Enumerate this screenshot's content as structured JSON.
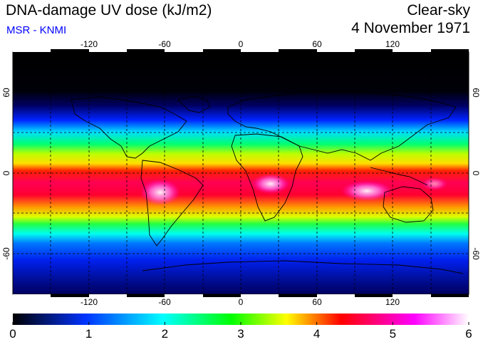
{
  "header": {
    "title": "DNA-damage UV dose (kJ/m2)",
    "source": "MSR - KNMI",
    "condition": "Clear-sky",
    "date": "4 November 1971"
  },
  "map": {
    "lon_ticks": [
      "-120",
      "-60",
      "0",
      "60",
      "120"
    ],
    "lat_ticks": [
      "60",
      "0",
      "-60"
    ]
  },
  "colorbar": {
    "labels": [
      "0",
      "1",
      "2",
      "3",
      "4",
      "5",
      "6"
    ],
    "min": 0,
    "max": 6,
    "stops": [
      "#000000",
      "#0033ff",
      "#00ffff",
      "#00ff00",
      "#ffff00",
      "#ff0000",
      "#ff00ff",
      "#ffffff"
    ]
  }
}
